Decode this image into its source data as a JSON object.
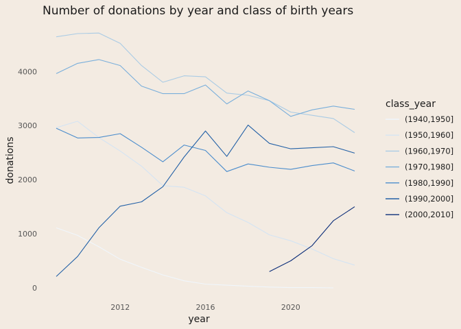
{
  "chart_data": {
    "type": "line",
    "title": "Number of donations by year and class of birth years",
    "xlabel": "year",
    "ylabel": "donations",
    "xlim": [
      2009,
      2023
    ],
    "ylim": [
      0,
      4700
    ],
    "xticks": [
      2012,
      2016,
      2020
    ],
    "yticks": [
      0,
      1000,
      2000,
      3000,
      4000
    ],
    "grid": false,
    "legend": {
      "title": "class_year",
      "placement": "right"
    },
    "series": [
      {
        "name": "(1940,1950]",
        "color": "#f0f6fc",
        "x": [
          2009,
          2010,
          2011,
          2012,
          2013,
          2014,
          2015,
          2016,
          2017,
          2018,
          2019,
          2020,
          2021,
          2022
        ],
        "y": [
          1110,
          970,
          760,
          530,
          380,
          240,
          130,
          70,
          50,
          30,
          15,
          5,
          5,
          0
        ]
      },
      {
        "name": "(1950,1960]",
        "color": "#d4e4f3",
        "x": [
          2009,
          2010,
          2011,
          2012,
          2013,
          2014,
          2015,
          2016,
          2017,
          2018,
          2019,
          2020,
          2021,
          2022,
          2023
        ],
        "y": [
          2960,
          3080,
          2780,
          2530,
          2250,
          1890,
          1860,
          1700,
          1390,
          1210,
          980,
          870,
          720,
          540,
          420
        ]
      },
      {
        "name": "(1960,1970]",
        "color": "#a9cbe5",
        "x": [
          2009,
          2010,
          2011,
          2012,
          2013,
          2014,
          2015,
          2016,
          2017,
          2018,
          2019,
          2020,
          2021,
          2022,
          2023
        ],
        "y": [
          4640,
          4700,
          4710,
          4520,
          4110,
          3800,
          3920,
          3900,
          3600,
          3560,
          3460,
          3250,
          3190,
          3130,
          2870
        ]
      },
      {
        "name": "(1970,1980]",
        "color": "#78aedb",
        "x": [
          2009,
          2010,
          2011,
          2012,
          2013,
          2014,
          2015,
          2016,
          2017,
          2018,
          2019,
          2020,
          2021,
          2022,
          2023
        ],
        "y": [
          3960,
          4150,
          4220,
          4110,
          3730,
          3590,
          3590,
          3750,
          3400,
          3640,
          3460,
          3170,
          3290,
          3360,
          3300
        ]
      },
      {
        "name": "(1980,1990]",
        "color": "#4a8ccc",
        "x": [
          2009,
          2010,
          2011,
          2012,
          2013,
          2014,
          2015,
          2016,
          2017,
          2018,
          2019,
          2020,
          2021,
          2022,
          2023
        ],
        "y": [
          2950,
          2770,
          2780,
          2850,
          2600,
          2330,
          2640,
          2540,
          2150,
          2290,
          2230,
          2190,
          2260,
          2310,
          2160
        ]
      },
      {
        "name": "(1990,2000]",
        "color": "#2260a6",
        "x": [
          2009,
          2010,
          2011,
          2012,
          2013,
          2014,
          2015,
          2016,
          2017,
          2018,
          2019,
          2020,
          2021,
          2022,
          2023
        ],
        "y": [
          210,
          580,
          1110,
          1510,
          1590,
          1870,
          2420,
          2900,
          2430,
          3010,
          2670,
          2570,
          2590,
          2610,
          2490
        ]
      },
      {
        "name": "(2000,2010]",
        "color": "#0a2c78",
        "x": [
          2019,
          2020,
          2021,
          2022,
          2023
        ],
        "y": [
          300,
          500,
          780,
          1240,
          1500
        ]
      }
    ]
  }
}
